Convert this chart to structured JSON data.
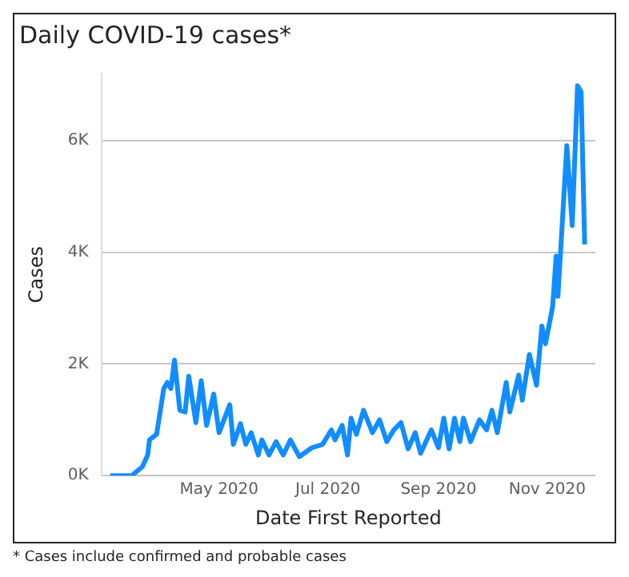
{
  "chart_data": {
    "type": "line",
    "title": "Daily COVID-19 cases*",
    "xlabel": "Date First Reported",
    "ylabel": "Cases",
    "x": [
      "2020-03-01",
      "2020-03-13",
      "2020-03-19",
      "2020-03-22",
      "2020-03-23",
      "2020-03-27",
      "2020-03-31",
      "2020-04-02",
      "2020-04-04",
      "2020-04-06",
      "2020-04-09",
      "2020-04-12",
      "2020-04-14",
      "2020-04-18",
      "2020-04-21",
      "2020-04-24",
      "2020-04-28",
      "2020-05-01",
      "2020-05-07",
      "2020-05-09",
      "2020-05-13",
      "2020-05-16",
      "2020-05-19",
      "2020-05-23",
      "2020-05-25",
      "2020-05-29",
      "2020-06-02",
      "2020-06-06",
      "2020-06-10",
      "2020-06-15",
      "2020-06-22",
      "2020-06-28",
      "2020-07-03",
      "2020-07-05",
      "2020-07-09",
      "2020-07-12",
      "2020-07-14",
      "2020-07-17",
      "2020-07-21",
      "2020-07-26",
      "2020-07-30",
      "2020-08-03",
      "2020-08-07",
      "2020-08-11",
      "2020-08-15",
      "2020-08-19",
      "2020-08-22",
      "2020-08-28",
      "2020-09-01",
      "2020-09-04",
      "2020-09-07",
      "2020-09-10",
      "2020-09-13",
      "2020-09-15",
      "2020-09-19",
      "2020-09-24",
      "2020-09-28",
      "2020-10-01",
      "2020-10-04",
      "2020-10-09",
      "2020-10-11",
      "2020-10-16",
      "2020-10-18",
      "2020-10-22",
      "2020-10-26",
      "2020-10-29",
      "2020-10-31",
      "2020-11-04",
      "2020-11-06",
      "2020-11-07",
      "2020-11-12",
      "2020-11-15",
      "2020-11-18",
      "2020-11-20",
      "2020-11-22"
    ],
    "series": [
      {
        "color": "#118dff",
        "values": [
          0,
          0,
          160,
          370,
          640,
          740,
          1560,
          1670,
          1560,
          2070,
          1170,
          1140,
          1780,
          950,
          1700,
          900,
          1460,
          770,
          1270,
          560,
          930,
          560,
          770,
          370,
          640,
          370,
          610,
          370,
          640,
          340,
          500,
          560,
          820,
          640,
          900,
          370,
          1030,
          740,
          1170,
          770,
          1000,
          610,
          820,
          950,
          480,
          770,
          400,
          820,
          500,
          1030,
          480,
          1030,
          610,
          1030,
          610,
          1000,
          820,
          1170,
          770,
          1670,
          1140,
          1800,
          1350,
          2170,
          1620,
          2680,
          2360,
          3020,
          3930,
          3210,
          5910,
          4480,
          6980,
          6870,
          4140
        ]
      }
    ],
    "xlim": [
      "2020-02-25",
      "2020-11-28"
    ],
    "xticks": [
      {
        "value": "2020-05-01",
        "label": "May 2020"
      },
      {
        "value": "2020-07-01",
        "label": "Jul 2020"
      },
      {
        "value": "2020-09-01",
        "label": "Sep 2020"
      },
      {
        "value": "2020-11-01",
        "label": "Nov 2020"
      }
    ],
    "ylim": [
      0,
      7200
    ],
    "yticks": [
      {
        "value": 0,
        "label": "0K"
      },
      {
        "value": 2000,
        "label": "2K"
      },
      {
        "value": 4000,
        "label": "4K"
      },
      {
        "value": 6000,
        "label": "6K"
      }
    ],
    "grid": "y",
    "marker": "none",
    "line_style": "solid",
    "annotations": [
      "* Cases include confirmed and probable cases"
    ]
  }
}
